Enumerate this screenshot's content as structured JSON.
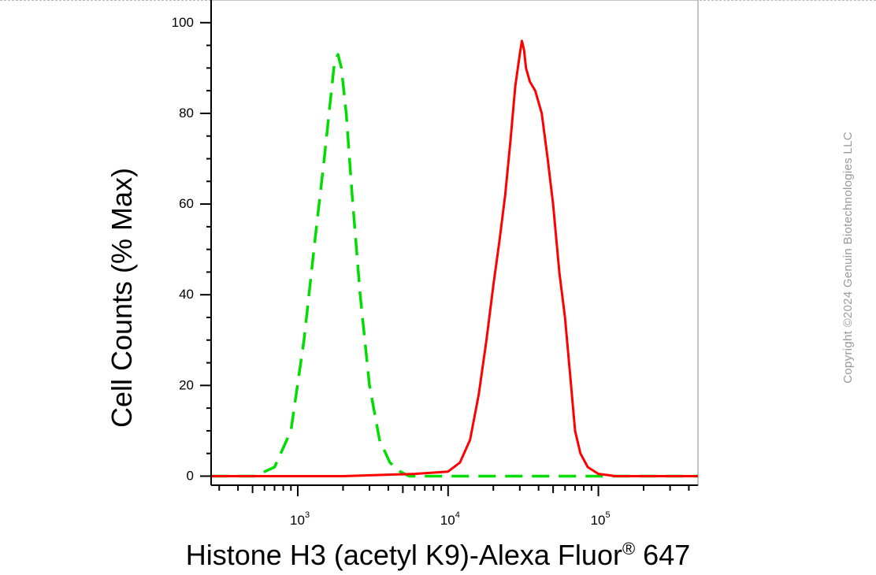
{
  "chart_data": {
    "type": "line",
    "xlabel": "Histone H3 (acetyl K9)-Alexa Fluor",
    "xlabel_sup": "®",
    "xlabel_suffix": " 647",
    "ylabel": "Cell Counts (% Max)",
    "x_scale": "log",
    "xlim": [
      265,
      460000
    ],
    "ylim": [
      -2,
      105
    ],
    "y_ticks": [
      0,
      20,
      40,
      60,
      80,
      100
    ],
    "y_tick_labels": [
      "0",
      "20",
      "40",
      "60",
      "80",
      "100"
    ],
    "x_ticks": [
      1000,
      10000,
      100000
    ],
    "x_tick_bases": [
      "10",
      "10",
      "10"
    ],
    "x_tick_exps": [
      "3",
      "4",
      "5"
    ],
    "grid": false,
    "series": [
      {
        "color": "#00dd00",
        "dash": "dashed",
        "x": [
          265,
          520,
          700,
          900,
          1100,
          1300,
          1500,
          1650,
          1750,
          1850,
          1950,
          2100,
          2300,
          2600,
          3000,
          3500,
          4100,
          4800,
          5500,
          6500,
          10000,
          30000,
          100000,
          460000
        ],
        "y": [
          0,
          0,
          2,
          10,
          30,
          52,
          70,
          83,
          91,
          93,
          90,
          80,
          62,
          40,
          20,
          8,
          3,
          1,
          0,
          0,
          0,
          0,
          0,
          0
        ]
      },
      {
        "color": "#ff0000",
        "dash": "solid",
        "x": [
          265,
          2000,
          6000,
          10000,
          12000,
          14000,
          16000,
          18000,
          20000,
          22000,
          24000,
          26000,
          28000,
          30000,
          31000,
          32000,
          33000,
          35000,
          38000,
          42000,
          46000,
          50000,
          55000,
          60000,
          65000,
          70000,
          76000,
          85000,
          100000,
          130000,
          180000,
          460000
        ],
        "y": [
          0,
          0,
          0.5,
          1,
          3,
          8,
          18,
          30,
          42,
          52,
          62,
          74,
          86,
          93,
          96,
          94,
          90,
          87,
          85,
          80,
          70,
          60,
          45,
          35,
          22,
          10,
          5,
          2,
          0.5,
          0,
          0,
          0
        ]
      }
    ]
  },
  "copyright": "Copyright ©2024 Genuin Biotechnologies LLC"
}
